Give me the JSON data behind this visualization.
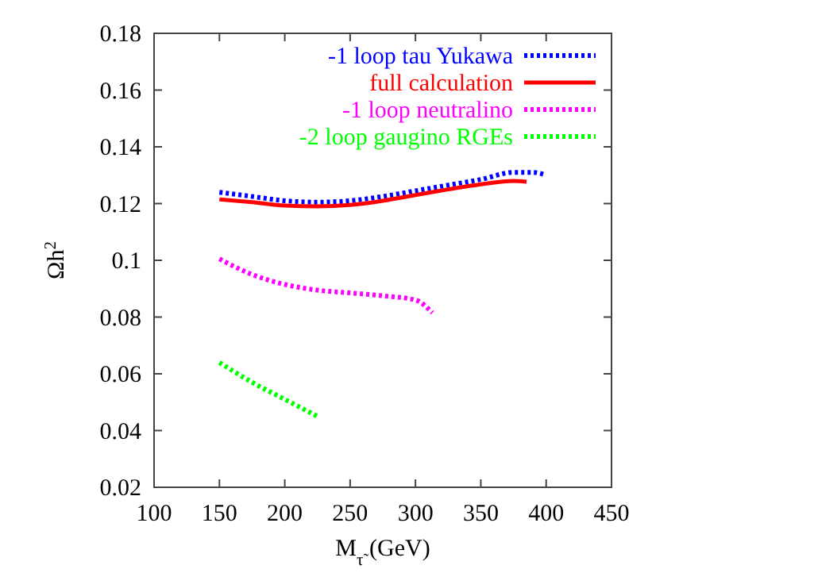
{
  "chart_data": {
    "type": "line",
    "xlabel": "M$_{τ̃}$ (GeV)",
    "ylabel": "Ωh$^{2}$",
    "xlim": [
      100,
      450
    ],
    "ylim": [
      0.02,
      0.18
    ],
    "xticks": [
      100,
      150,
      200,
      250,
      300,
      350,
      400,
      450
    ],
    "yticks": [
      0.02,
      0.04,
      0.06,
      0.08,
      {
        "value": 0.1,
        "label": "0.1"
      },
      0.12,
      0.14,
      0.16,
      0.18
    ],
    "legend": "top right",
    "grid": false,
    "series": [
      {
        "name": "-1 loop tau Yukawa",
        "color": "#0000ff",
        "line_style": "dotted",
        "x": [
          150,
          175,
          200,
          225,
          250,
          275,
          300,
          325,
          350,
          375,
          390,
          400
        ],
        "values": [
          0.124,
          0.1225,
          0.121,
          0.1205,
          0.121,
          0.1225,
          0.1245,
          0.1265,
          0.1285,
          0.131,
          0.131,
          0.13
        ]
      },
      {
        "name": "full calculation",
        "color": "#ff0000",
        "line_style": "solid",
        "x": [
          150,
          175,
          200,
          225,
          250,
          275,
          300,
          325,
          350,
          375,
          385
        ],
        "values": [
          0.1215,
          0.1205,
          0.1193,
          0.119,
          0.1195,
          0.121,
          0.123,
          0.125,
          0.1268,
          0.128,
          0.1277
        ]
      },
      {
        "name": "-1 loop neutralino",
        "color": "#ff00ff",
        "line_style": "dotted",
        "x": [
          150,
          175,
          200,
          225,
          250,
          275,
          300,
          313
        ],
        "values": [
          0.1005,
          0.095,
          0.0915,
          0.0895,
          0.0885,
          0.0875,
          0.086,
          0.0815
        ]
      },
      {
        "name": "-2 loop gaugino RGEs",
        "color": "#00ff00",
        "line_style": "dotted",
        "x": [
          150,
          175,
          200,
          225
        ],
        "values": [
          0.064,
          0.057,
          0.051,
          0.045
        ]
      }
    ]
  }
}
